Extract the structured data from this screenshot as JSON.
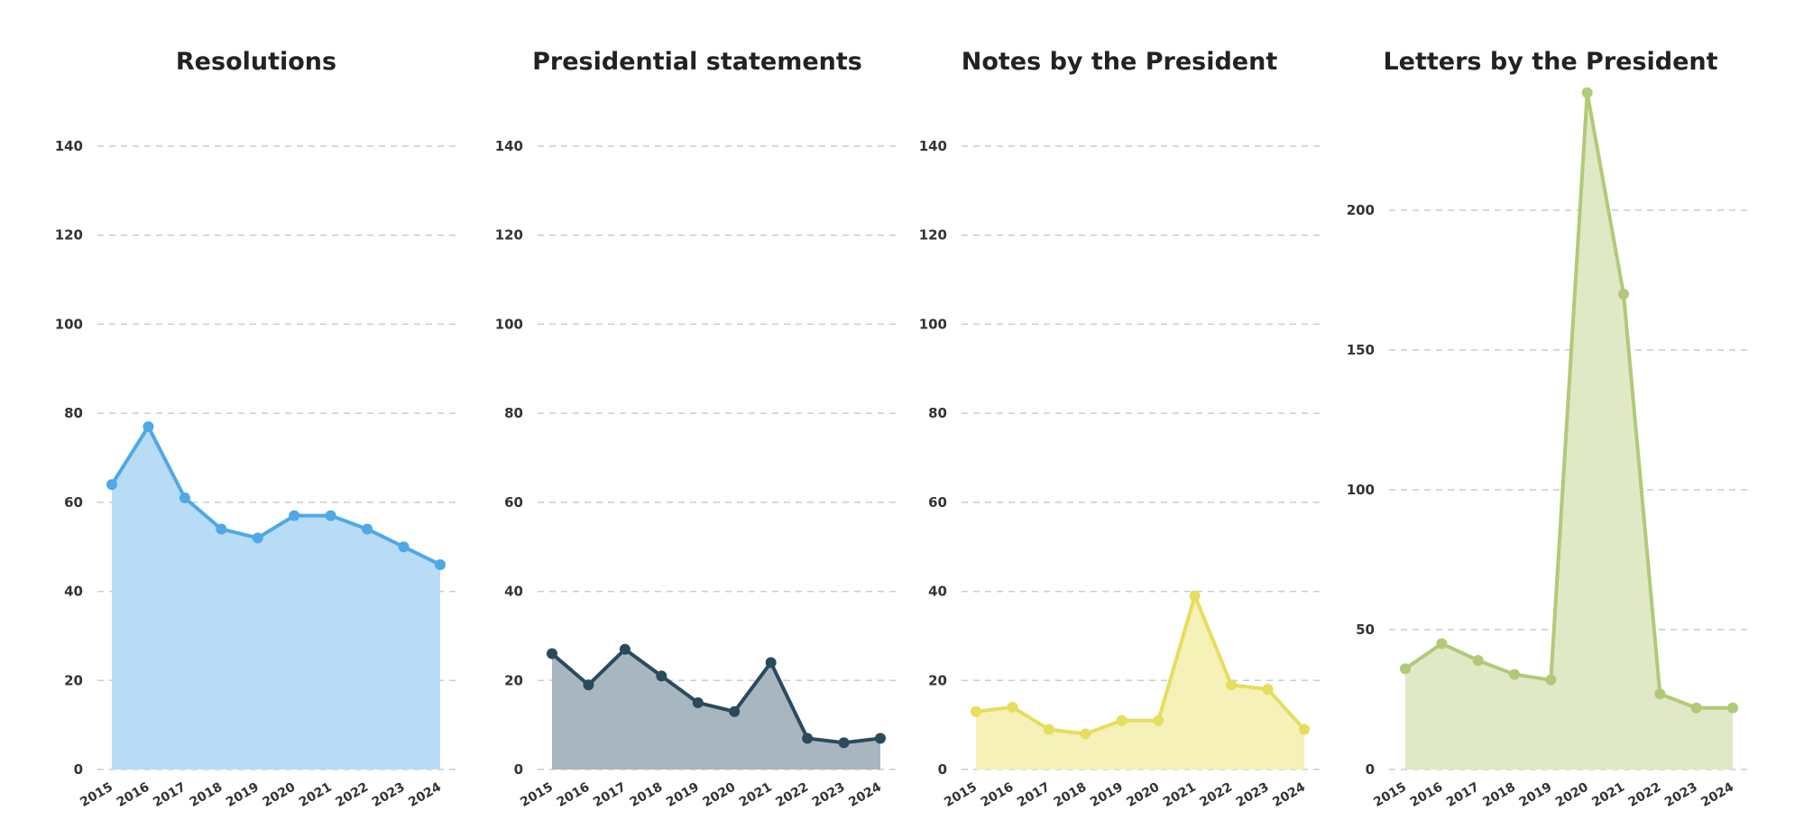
{
  "chart_data": [
    {
      "type": "area",
      "title": "Resolutions",
      "x": [
        "2015",
        "2016",
        "2017",
        "2018",
        "2019",
        "2020",
        "2021",
        "2022",
        "2023",
        "2024"
      ],
      "values": [
        64,
        77,
        61,
        54,
        52,
        57,
        57,
        54,
        50,
        46
      ],
      "yticks": [
        0,
        20,
        40,
        60,
        80,
        100,
        120,
        140
      ],
      "ylim": [
        0,
        150
      ],
      "grid": true,
      "line_color": "#4ea9e6",
      "fill_color": "#b8dcf6",
      "xlabel_color": "#333333"
    },
    {
      "type": "area",
      "title": "Presidential statements",
      "x": [
        "2015",
        "2016",
        "2017",
        "2018",
        "2019",
        "2020",
        "2021",
        "2022",
        "2023",
        "2024"
      ],
      "values": [
        26,
        19,
        27,
        21,
        15,
        13,
        24,
        7,
        6,
        7
      ],
      "yticks": [
        0,
        20,
        40,
        60,
        80,
        100,
        120,
        140
      ],
      "ylim": [
        0,
        150
      ],
      "grid": true,
      "line_color": "#2a4a5e",
      "fill_color": "#a8b6bf",
      "xlabel_color": "#333333"
    },
    {
      "type": "area",
      "title": "Notes by the President",
      "x": [
        "2015",
        "2016",
        "2017",
        "2018",
        "2019",
        "2020",
        "2021",
        "2022",
        "2023",
        "2024"
      ],
      "values": [
        13,
        14,
        9,
        8,
        11,
        11,
        39,
        19,
        18,
        9
      ],
      "yticks": [
        0,
        20,
        40,
        60,
        80,
        100,
        120,
        140
      ],
      "ylim": [
        0,
        150
      ],
      "grid": true,
      "line_color": "#e6de5c",
      "fill_color": "#f5f1b9",
      "xlabel_color": "#333333"
    },
    {
      "type": "area",
      "title": "Letters by the President",
      "x": [
        "2015",
        "2016",
        "2017",
        "2018",
        "2019",
        "2020",
        "2021",
        "2022",
        "2023",
        "2024"
      ],
      "values": [
        36,
        45,
        39,
        34,
        32,
        242,
        170,
        27,
        22,
        22
      ],
      "yticks": [
        0,
        50,
        100,
        150,
        200
      ],
      "ylim": [
        0,
        242
      ],
      "grid": true,
      "line_color": "#b2c977",
      "fill_color": "#e1e8c6",
      "xlabel_color": "#888888"
    }
  ]
}
